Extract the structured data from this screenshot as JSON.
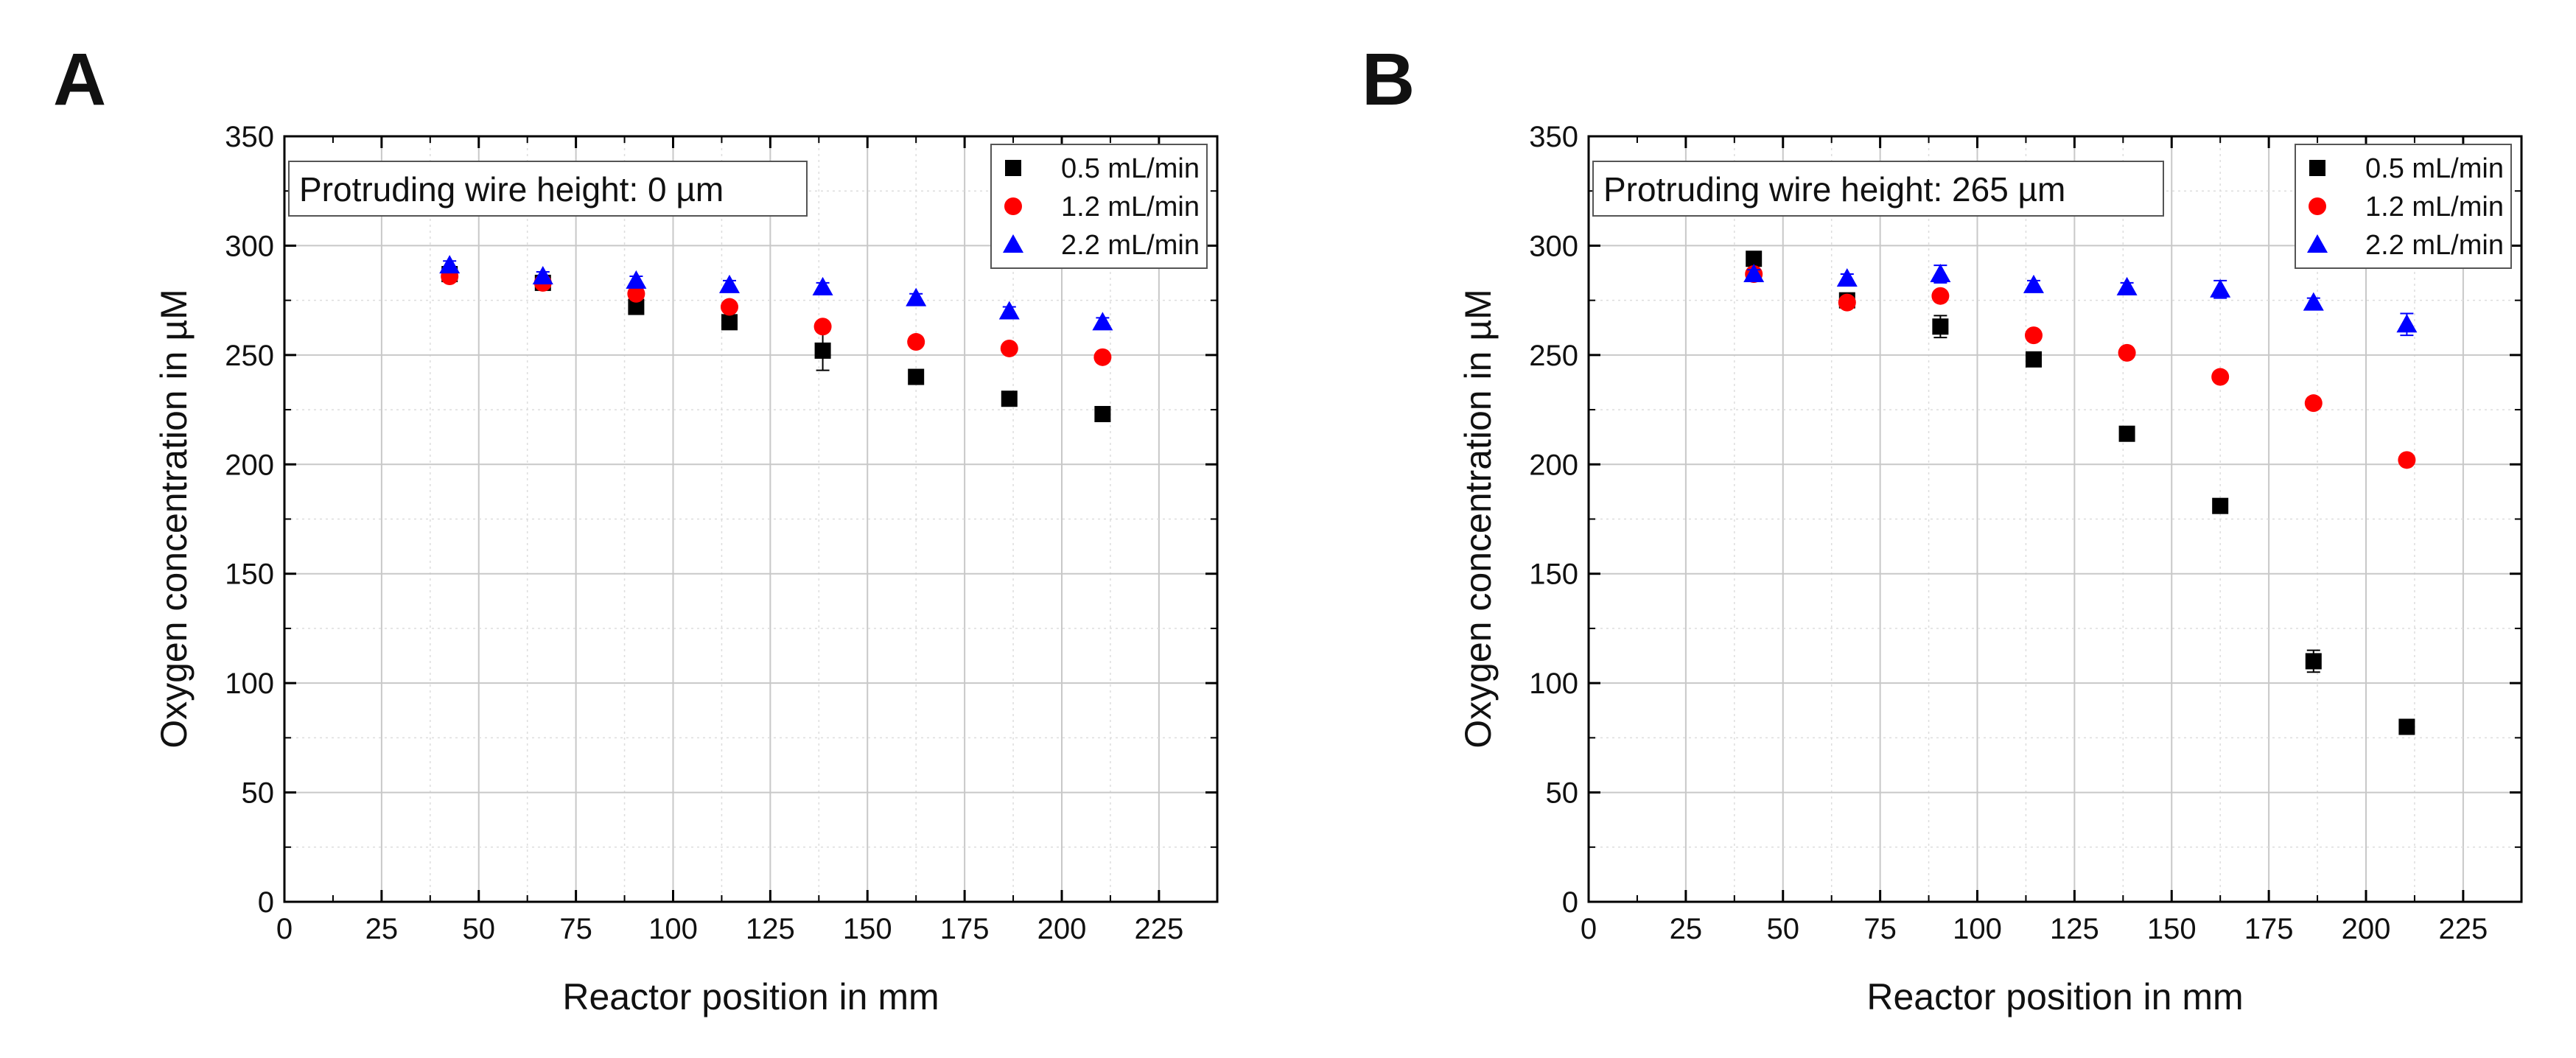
{
  "chart_data": [
    {
      "type": "scatter",
      "panel_label": "A",
      "annotation": "Protruding wire height: 0 µm",
      "xlabel": "Reactor position in mm",
      "ylabel": "Oxygen concentration in µM",
      "xlim": [
        0,
        240
      ],
      "ylim": [
        0,
        350
      ],
      "xticks": [
        0,
        25,
        50,
        75,
        100,
        125,
        150,
        175,
        200,
        225
      ],
      "yticks": [
        0,
        50,
        100,
        150,
        200,
        250,
        300,
        350
      ],
      "grid": true,
      "legend_position": "top-right",
      "x": [
        42.5,
        66.5,
        90.5,
        114.5,
        138.5,
        162.5,
        186.5,
        210.5
      ],
      "series": [
        {
          "name": "0.5 mL/min",
          "marker": "square",
          "color": "#000000",
          "values": [
            287,
            283,
            272,
            265,
            252,
            240,
            230,
            223
          ],
          "errors": [
            2,
            2,
            2,
            2,
            9,
            2,
            2,
            2
          ]
        },
        {
          "name": "1.2 mL/min",
          "marker": "circle",
          "color": "#ff0000",
          "values": [
            286,
            283,
            278,
            272,
            263,
            256,
            253,
            249
          ],
          "errors": [
            2,
            2,
            2,
            2,
            2,
            2,
            2,
            2
          ]
        },
        {
          "name": "2.2 mL/min",
          "marker": "triangle",
          "color": "#0000ff",
          "values": [
            291,
            286,
            284,
            282,
            281,
            276,
            270,
            265
          ],
          "errors": [
            2,
            2,
            2,
            2,
            2,
            2,
            2,
            2
          ]
        }
      ]
    },
    {
      "type": "scatter",
      "panel_label": "B",
      "annotation": "Protruding wire height: 265 µm",
      "xlabel": "Reactor position in mm",
      "ylabel": "Oxygen concentration in µM",
      "xlim": [
        0,
        240
      ],
      "ylim": [
        0,
        350
      ],
      "xticks": [
        0,
        25,
        50,
        75,
        100,
        125,
        150,
        175,
        200,
        225
      ],
      "yticks": [
        0,
        50,
        100,
        150,
        200,
        250,
        300,
        350
      ],
      "grid": true,
      "legend_position": "top-right",
      "x": [
        42.5,
        66.5,
        90.5,
        114.5,
        138.5,
        162.5,
        186.5,
        210.5
      ],
      "series": [
        {
          "name": "0.5 mL/min",
          "marker": "square",
          "color": "#000000",
          "values": [
            294,
            275,
            263,
            248,
            214,
            181,
            110,
            80
          ],
          "errors": [
            2,
            3,
            5,
            2,
            2,
            2,
            5,
            2
          ]
        },
        {
          "name": "1.2 mL/min",
          "marker": "circle",
          "color": "#ff0000",
          "values": [
            287,
            274,
            277,
            259,
            251,
            240,
            228,
            202
          ],
          "errors": [
            2,
            2,
            2,
            2,
            2,
            2,
            2,
            2
          ]
        },
        {
          "name": "2.2 mL/min",
          "marker": "triangle",
          "color": "#0000ff",
          "values": [
            287,
            285,
            287,
            282,
            281,
            280,
            274,
            264
          ],
          "errors": [
            2,
            2,
            4,
            2,
            2,
            4,
            2,
            5
          ]
        }
      ]
    }
  ]
}
